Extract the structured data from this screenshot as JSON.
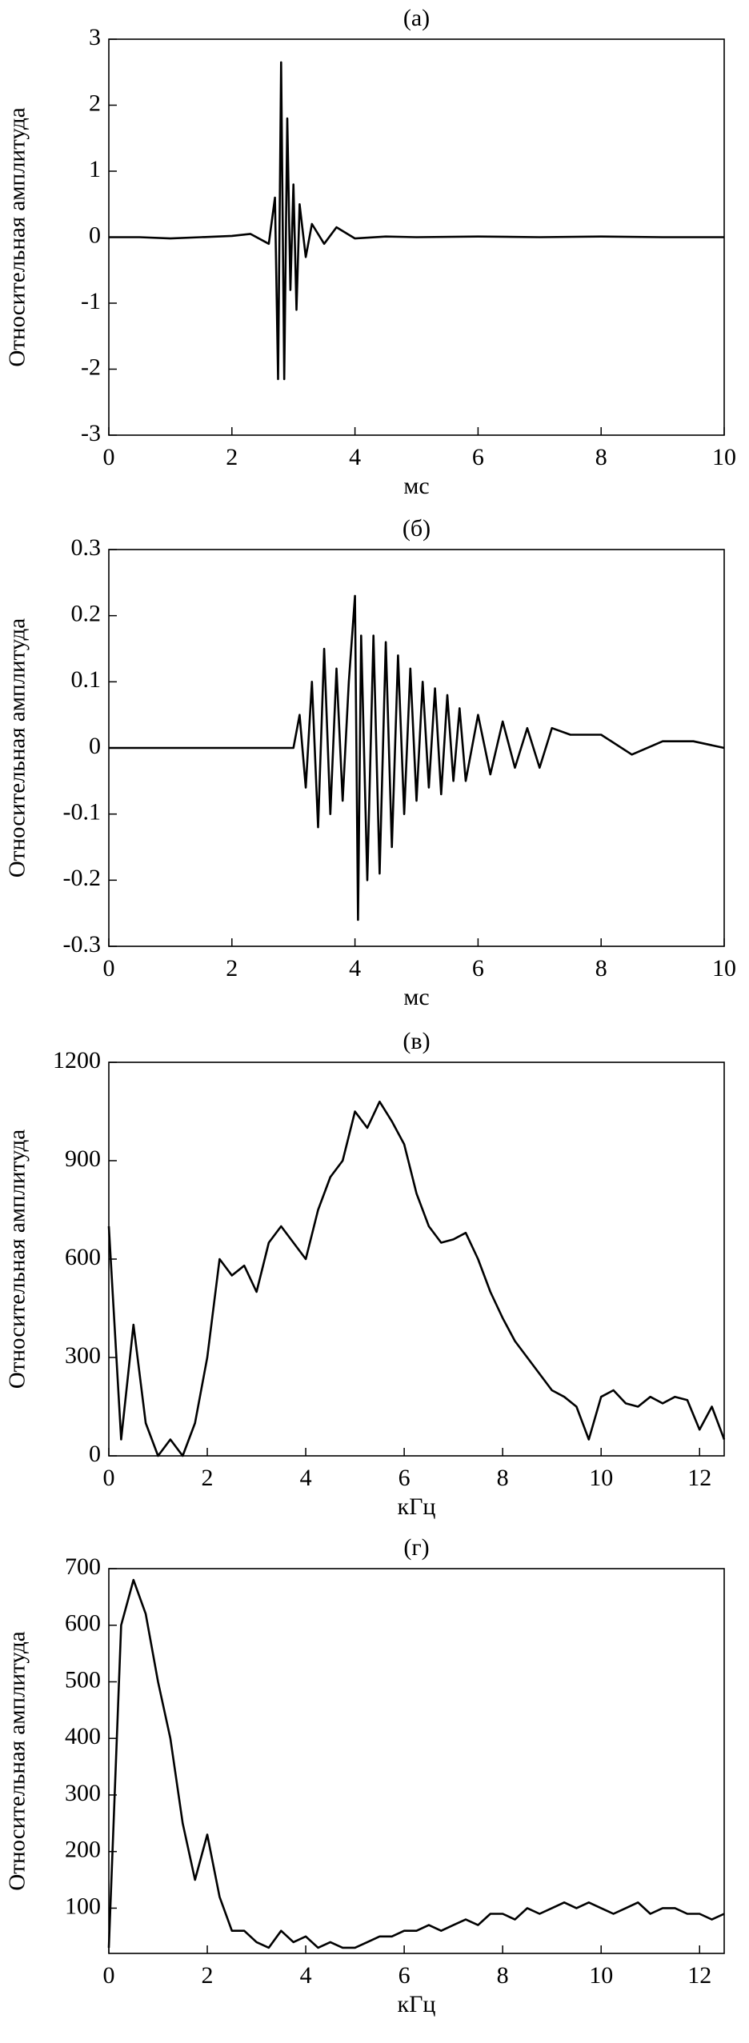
{
  "chart_data": [
    {
      "type": "line",
      "title": "(а)",
      "x_label": "мс",
      "y_label": "Относительная амплитуда",
      "color": "#000000",
      "x": [
        0,
        0.5,
        1,
        1.5,
        2,
        2.3,
        2.6,
        2.7,
        2.75,
        2.8,
        2.85,
        2.9,
        2.95,
        3.0,
        3.05,
        3.1,
        3.2,
        3.3,
        3.5,
        3.7,
        4,
        4.5,
        5,
        6,
        7,
        8,
        9,
        10
      ],
      "values": [
        0,
        0,
        -0.02,
        0,
        0.02,
        0.05,
        -0.1,
        0.6,
        -2.15,
        2.65,
        -2.15,
        1.8,
        -0.8,
        0.8,
        -1.1,
        0.5,
        -0.3,
        0.2,
        -0.1,
        0.15,
        -0.02,
        0.01,
        0,
        0.01,
        0,
        0.01,
        0,
        0
      ],
      "xlim": [
        0,
        10
      ],
      "xticks": [
        0,
        2,
        4,
        6,
        8,
        10
      ],
      "ylim": [
        -3,
        3
      ],
      "yticks": [
        -3,
        -2,
        -1,
        0,
        1,
        2,
        3
      ]
    },
    {
      "type": "line",
      "title": "(б)",
      "x_label": "мс",
      "y_label": "Относительная амплитуда",
      "color": "#000000",
      "x": [
        0,
        1,
        2,
        3,
        3.1,
        3.2,
        3.3,
        3.4,
        3.5,
        3.6,
        3.7,
        3.8,
        3.9,
        4.0,
        4.05,
        4.1,
        4.2,
        4.3,
        4.4,
        4.5,
        4.6,
        4.7,
        4.8,
        4.9,
        5.0,
        5.1,
        5.2,
        5.3,
        5.4,
        5.5,
        5.6,
        5.7,
        5.8,
        6.0,
        6.2,
        6.4,
        6.6,
        6.8,
        7.0,
        7.2,
        7.5,
        8,
        8.5,
        9,
        9.5,
        10
      ],
      "values": [
        0,
        0,
        0,
        0,
        0.05,
        -0.06,
        0.1,
        -0.12,
        0.15,
        -0.1,
        0.12,
        -0.08,
        0.1,
        0.23,
        -0.26,
        0.17,
        -0.2,
        0.17,
        -0.19,
        0.16,
        -0.15,
        0.14,
        -0.1,
        0.12,
        -0.08,
        0.1,
        -0.06,
        0.09,
        -0.07,
        0.08,
        -0.05,
        0.06,
        -0.05,
        0.05,
        -0.04,
        0.04,
        -0.03,
        0.03,
        -0.03,
        0.03,
        0.02,
        0.02,
        -0.01,
        0.01,
        0.01,
        0
      ],
      "xlim": [
        0,
        10
      ],
      "xticks": [
        0,
        2,
        4,
        6,
        8,
        10
      ],
      "ylim": [
        -0.3,
        0.3
      ],
      "yticks": [
        -0.3,
        -0.2,
        -0.1,
        0,
        0.1,
        0.2,
        0.3
      ]
    },
    {
      "type": "line",
      "title": "(в)",
      "x_label": "кГц",
      "y_label": "Относительная амплитуда",
      "color": "#000000",
      "x": [
        0,
        0.25,
        0.5,
        0.75,
        1,
        1.25,
        1.5,
        1.75,
        2,
        2.25,
        2.5,
        2.75,
        3,
        3.25,
        3.5,
        3.75,
        4,
        4.25,
        4.5,
        4.75,
        5,
        5.25,
        5.5,
        5.75,
        6,
        6.25,
        6.5,
        6.75,
        7,
        7.25,
        7.5,
        7.75,
        8,
        8.25,
        8.5,
        8.75,
        9,
        9.25,
        9.5,
        9.75,
        10,
        10.25,
        10.5,
        10.75,
        11,
        11.25,
        11.5,
        11.75,
        12,
        12.25,
        12.5
      ],
      "values": [
        700,
        50,
        400,
        100,
        0,
        50,
        0,
        100,
        300,
        600,
        550,
        580,
        500,
        650,
        700,
        650,
        600,
        750,
        850,
        900,
        1050,
        1000,
        1080,
        1020,
        950,
        800,
        700,
        650,
        660,
        680,
        600,
        500,
        420,
        350,
        300,
        250,
        200,
        180,
        150,
        50,
        180,
        200,
        160,
        150,
        180,
        160,
        180,
        170,
        80,
        150,
        50
      ],
      "xlim": [
        0,
        12.5
      ],
      "xticks": [
        0,
        2,
        4,
        6,
        8,
        10,
        12
      ],
      "ylim": [
        0,
        1200
      ],
      "yticks": [
        0,
        300,
        600,
        900,
        1200
      ]
    },
    {
      "type": "line",
      "title": "(г)",
      "x_label": "кГц",
      "y_label": "Относительная амплитуда",
      "color": "#000000",
      "x": [
        0,
        0.25,
        0.5,
        0.75,
        1,
        1.25,
        1.5,
        1.75,
        2,
        2.25,
        2.5,
        2.75,
        3,
        3.25,
        3.5,
        3.75,
        4,
        4.25,
        4.5,
        4.75,
        5,
        5.25,
        5.5,
        5.75,
        6,
        6.25,
        6.5,
        6.75,
        7,
        7.25,
        7.5,
        7.75,
        8,
        8.25,
        8.5,
        8.75,
        9,
        9.25,
        9.5,
        9.75,
        10,
        10.25,
        10.5,
        10.75,
        11,
        11.25,
        11.5,
        11.75,
        12,
        12.25,
        12.5
      ],
      "values": [
        30,
        600,
        680,
        620,
        500,
        400,
        250,
        150,
        230,
        120,
        60,
        60,
        40,
        30,
        60,
        40,
        50,
        30,
        40,
        30,
        30,
        40,
        50,
        50,
        60,
        60,
        70,
        60,
        70,
        80,
        70,
        90,
        90,
        80,
        100,
        90,
        100,
        110,
        100,
        110,
        100,
        90,
        100,
        110,
        90,
        100,
        100,
        90,
        90,
        80,
        90
      ],
      "xlim": [
        0,
        12.5
      ],
      "xticks": [
        0,
        2,
        4,
        6,
        8,
        10,
        12
      ],
      "ylim": [
        20,
        700
      ],
      "yticks": [
        100,
        200,
        300,
        400,
        500,
        600,
        700
      ]
    }
  ]
}
